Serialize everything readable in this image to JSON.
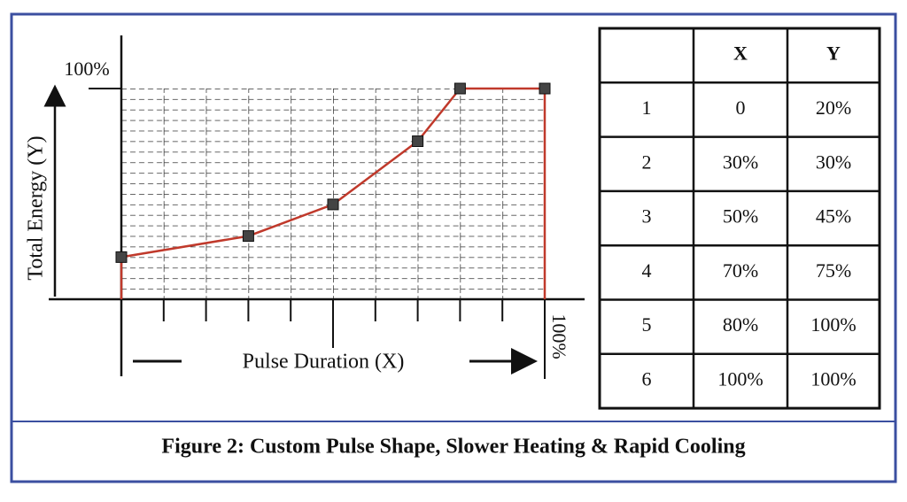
{
  "chart_data": {
    "type": "line",
    "ylabel": "Total Energy (Y)",
    "xlabel": "Pulse Duration (X)",
    "x": [
      0,
      30,
      50,
      70,
      80,
      100
    ],
    "series": [
      {
        "color": "#c0392b",
        "values": [
          20,
          30,
          45,
          75,
          100,
          100
        ]
      }
    ],
    "xlim": [
      0,
      100
    ],
    "ylim": [
      0,
      100
    ],
    "xticks": [
      {
        "value": 100,
        "label": "100%"
      }
    ],
    "yticks": [
      {
        "value": 100,
        "label": "100%"
      }
    ],
    "grid": true
  },
  "table": {
    "header": [
      "X",
      "Y"
    ],
    "rows": [
      [
        "1",
        "0",
        "20%"
      ],
      [
        "2",
        "30%",
        "30%"
      ],
      [
        "3",
        "50%",
        "45%"
      ],
      [
        "4",
        "70%",
        "75%"
      ],
      [
        "5",
        "80%",
        "100%"
      ],
      [
        "6",
        "100%",
        "100%"
      ]
    ]
  },
  "caption": "Figure 2: Custom Pulse Shape, Slower Heating & Rapid Cooling"
}
